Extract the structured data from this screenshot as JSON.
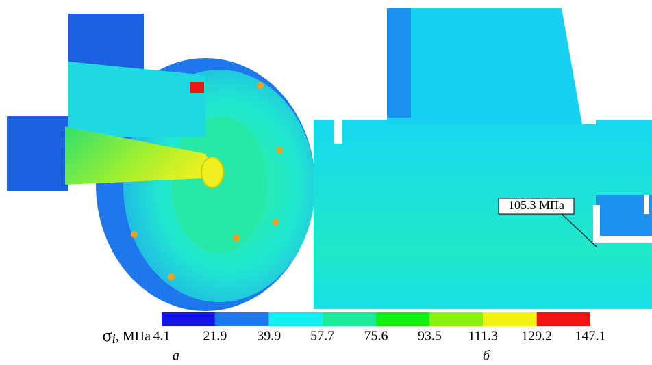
{
  "colorbar": {
    "label_symbol": "σ",
    "label_subscript": "i",
    "label_unit": ", МПа",
    "ticks": [
      4.1,
      21.9,
      39.9,
      57.7,
      75.6,
      93.5,
      111.3,
      129.2,
      147.1
    ],
    "colors": [
      "#1414e6",
      "#1e78ec",
      "#14eef0",
      "#1ee89a",
      "#14f014",
      "#8cf014",
      "#f2f214",
      "#f01414"
    ]
  },
  "annotation": "105.3 МПа",
  "captions": [
    "а",
    "б"
  ]
}
